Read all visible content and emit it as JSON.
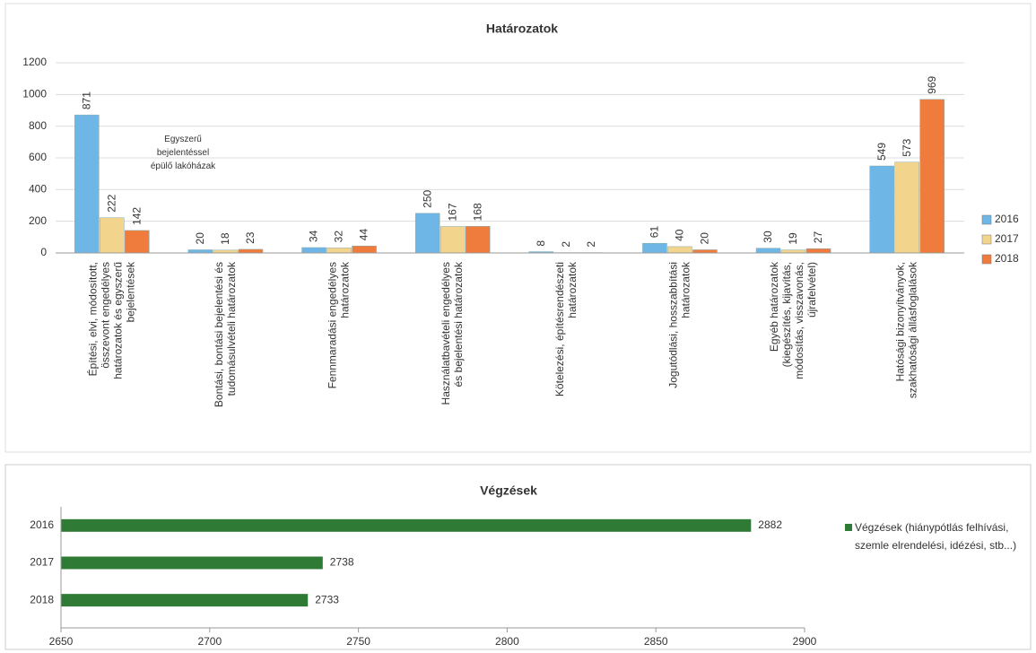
{
  "chart_data": [
    {
      "type": "bar",
      "title": "Határozatok",
      "categories": [
        "Építési, elvi, módosított,\nösszevont engedélyes\nhatározatok és egyszerű\nbejelentések",
        "Bontási, bontási bejelentési és\ntudomásulvételi határozatok",
        "Fennmaradási engedélyes\nhatározatok",
        "Használatbavételi engedélyes\nés bejelentési határozatok",
        "Kötelezési, építésrendészeti\nhatározatok",
        "Jogutódlási, hosszabbítási\nhatározatok",
        "Egyéb határozatok\n(kiegészítés, kijavítás,\nmódosítás, visszavonás,\nújrafelvétel)",
        "Hatósági bizonyítványok,\nszakhatósági állásfoglalások"
      ],
      "series": [
        {
          "name": "2016",
          "color": "#6db6e6",
          "values": [
            871,
            20,
            34,
            250,
            8,
            61,
            30,
            549
          ]
        },
        {
          "name": "2017",
          "color": "#f3d48c",
          "values": [
            222,
            18,
            32,
            167,
            2,
            40,
            19,
            573
          ]
        },
        {
          "name": "2018",
          "color": "#ef7b3c",
          "values": [
            142,
            23,
            44,
            168,
            2,
            20,
            27,
            969
          ]
        }
      ],
      "annotation": "Egyszerű\nbejelentéssel\népülő lakóházak",
      "ylim": [
        0,
        1200
      ],
      "yticks": [
        0,
        200,
        400,
        600,
        800,
        1000,
        1200
      ],
      "grid": true,
      "legend": "right"
    },
    {
      "type": "barh",
      "title": "Végzések",
      "categories": [
        "2016",
        "2017",
        "2018"
      ],
      "series": [
        {
          "name": "Végzések (hiánypótlás felhívási, szemle elrendelési, idézési, stb...)",
          "color": "#2f7a34",
          "values": [
            2882,
            2738,
            2733
          ]
        }
      ],
      "xlim": [
        2650,
        2900
      ],
      "xticks": [
        2650,
        2700,
        2750,
        2800,
        2850,
        2900
      ],
      "grid": true,
      "legend": "right"
    }
  ]
}
